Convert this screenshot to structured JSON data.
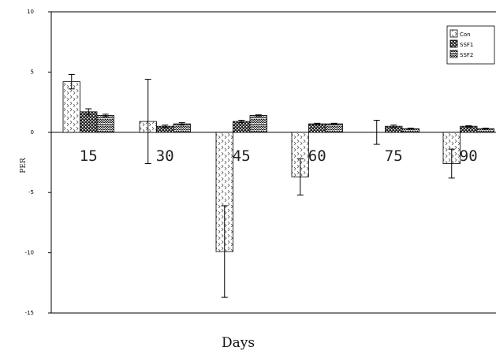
{
  "chart_data": {
    "type": "bar",
    "xlabel": "Days",
    "ylabel": "PER",
    "ylim": [
      -15,
      10
    ],
    "yticks": [
      10,
      5,
      0,
      -5,
      -10,
      -15
    ],
    "categories": [
      "15",
      "30",
      "45",
      "60",
      "75",
      "90"
    ],
    "series": [
      {
        "name": "Con",
        "values": [
          4.2,
          0.9,
          -9.9,
          -3.7,
          0.0,
          -2.6
        ],
        "errors": [
          0.6,
          3.5,
          3.8,
          1.5,
          1.0,
          1.2
        ],
        "pattern": "dots"
      },
      {
        "name": "SSF1",
        "values": [
          1.7,
          0.5,
          0.9,
          0.7,
          0.5,
          0.5
        ],
        "errors": [
          0.25,
          0.1,
          0.1,
          0.05,
          0.1,
          0.05
        ],
        "pattern": "dense"
      },
      {
        "name": "SSF2",
        "values": [
          1.4,
          0.7,
          1.4,
          0.7,
          0.3,
          0.3
        ],
        "errors": [
          0.1,
          0.1,
          0.05,
          0.05,
          0.05,
          0.05
        ],
        "pattern": "zigzag"
      }
    ],
    "grid": false,
    "legend_position": "top-right",
    "colors": {
      "axis": "#000000",
      "bar_stroke": "#000000",
      "background": "#ffffff"
    }
  }
}
